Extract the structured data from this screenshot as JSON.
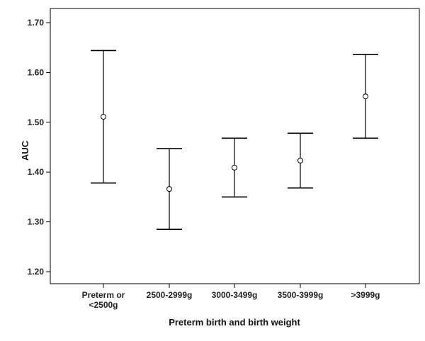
{
  "chart_data": {
    "type": "errorbar",
    "title": "",
    "xlabel": "Preterm birth and birth weight",
    "ylabel": "AUC",
    "ylim": [
      1.17,
      1.72
    ],
    "yticks": [
      "1.20",
      "1.30",
      "1.40",
      "1.50",
      "1.60",
      "1.70"
    ],
    "grid": false,
    "categories": [
      [
        "Preterm or",
        "<2500g"
      ],
      [
        "2500-2999g"
      ],
      [
        "3000-3499g"
      ],
      [
        "3500-3999g"
      ],
      [
        ">3999g"
      ]
    ],
    "mean": [
      1.511,
      1.366,
      1.409,
      1.423,
      1.552
    ],
    "lower": [
      1.378,
      1.285,
      1.35,
      1.368,
      1.468
    ],
    "upper": [
      1.644,
      1.447,
      1.468,
      1.478,
      1.636
    ],
    "colors": {
      "axis": "#000000",
      "marks": "#000000"
    }
  }
}
